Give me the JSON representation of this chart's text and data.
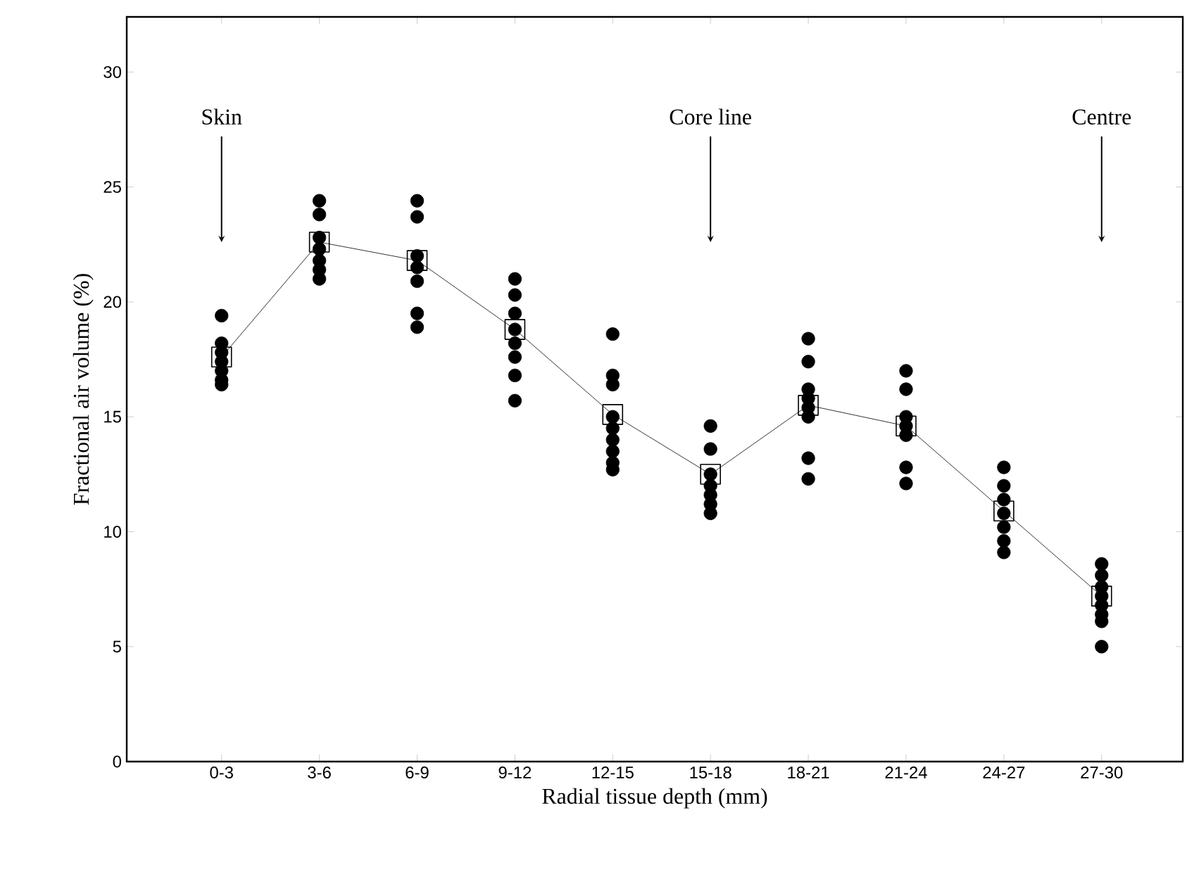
{
  "chart_data": {
    "type": "scatter",
    "xlabel": "Radial tissue depth (mm)",
    "ylabel": "Fractional air volume (%)",
    "categories": [
      "0-3",
      "3-6",
      "6-9",
      "9-12",
      "12-15",
      "15-18",
      "18-21",
      "21-24",
      "24-27",
      "27-30"
    ],
    "ylim": [
      0,
      32.4
    ],
    "yticks": [
      0,
      5,
      10,
      15,
      20,
      25,
      30
    ],
    "grid": false,
    "series": [
      {
        "marker": "circle",
        "color": "#000000",
        "x": [
          "0-3",
          "0-3",
          "0-3",
          "0-3",
          "0-3",
          "0-3",
          "0-3",
          "3-6",
          "3-6",
          "3-6",
          "3-6",
          "3-6",
          "3-6",
          "3-6",
          "6-9",
          "6-9",
          "6-9",
          "6-9",
          "6-9",
          "6-9",
          "6-9",
          "9-12",
          "9-12",
          "9-12",
          "9-12",
          "9-12",
          "9-12",
          "9-12",
          "9-12",
          "12-15",
          "12-15",
          "12-15",
          "12-15",
          "12-15",
          "12-15",
          "12-15",
          "12-15",
          "12-15",
          "15-18",
          "15-18",
          "15-18",
          "15-18",
          "15-18",
          "15-18",
          "15-18",
          "18-21",
          "18-21",
          "18-21",
          "18-21",
          "18-21",
          "18-21",
          "18-21",
          "18-21",
          "21-24",
          "21-24",
          "21-24",
          "21-24",
          "21-24",
          "21-24",
          "21-24",
          "24-27",
          "24-27",
          "24-27",
          "24-27",
          "24-27",
          "24-27",
          "24-27",
          "27-30",
          "27-30",
          "27-30",
          "27-30",
          "27-30",
          "27-30",
          "27-30",
          "27-30"
        ],
        "values": [
          19.4,
          18.2,
          17.8,
          17.4,
          17.0,
          16.6,
          16.4,
          24.4,
          23.8,
          22.8,
          22.3,
          21.8,
          21.4,
          21.0,
          24.4,
          23.7,
          22.0,
          21.5,
          20.9,
          19.5,
          18.9,
          21.0,
          20.3,
          19.5,
          18.8,
          18.2,
          17.6,
          16.8,
          15.7,
          18.6,
          16.8,
          16.4,
          15.0,
          14.5,
          14.0,
          13.5,
          13.0,
          12.7,
          14.6,
          13.6,
          12.5,
          12.0,
          11.6,
          11.2,
          10.8,
          18.4,
          17.4,
          16.2,
          15.8,
          15.4,
          15.0,
          13.2,
          12.3,
          17.0,
          16.2,
          15.0,
          14.6,
          14.2,
          12.8,
          12.1,
          12.8,
          12.0,
          11.4,
          10.8,
          10.2,
          9.6,
          9.1,
          8.6,
          8.1,
          7.6,
          7.2,
          6.8,
          6.4,
          6.1,
          5.0
        ]
      },
      {
        "type": "line",
        "marker": "square",
        "line_style": "solid",
        "color": "#000000",
        "values": [
          17.6,
          22.6,
          21.8,
          18.8,
          15.1,
          12.5,
          15.5,
          14.6,
          10.9,
          7.2
        ]
      }
    ],
    "annotations": [
      "Skin",
      "Core line",
      "Centre"
    ]
  }
}
